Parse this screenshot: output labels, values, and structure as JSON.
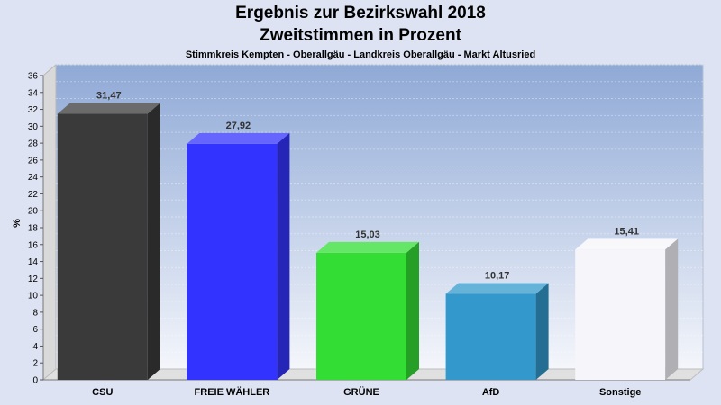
{
  "chart_data": {
    "type": "bar",
    "title": "Ergebnis zur Bezirkswahl 2018",
    "subtitle": "Zweitstimmen in Prozent",
    "caption": "Stimmkreis Kempten - Oberallgäu - Landkreis Oberallgäu - Markt Altusried",
    "xlabel": "",
    "ylabel": "%",
    "ylim": [
      0,
      36
    ],
    "yticks": [
      0,
      2,
      4,
      6,
      8,
      10,
      12,
      14,
      16,
      18,
      20,
      22,
      24,
      26,
      28,
      30,
      32,
      34,
      36
    ],
    "categories": [
      "CSU",
      "FREIE WÄHLER",
      "GRÜNE",
      "AfD",
      "Sonstige"
    ],
    "values": [
      31.47,
      27.92,
      15.03,
      10.17,
      15.41
    ],
    "value_labels": [
      "31,47",
      "27,92",
      "15,03",
      "10,17",
      "15,41"
    ],
    "colors": [
      "#3a3a3a",
      "#3333ff",
      "#33dd33",
      "#3399cc",
      "#f5f5fa"
    ],
    "grid": true,
    "legend": "none"
  }
}
